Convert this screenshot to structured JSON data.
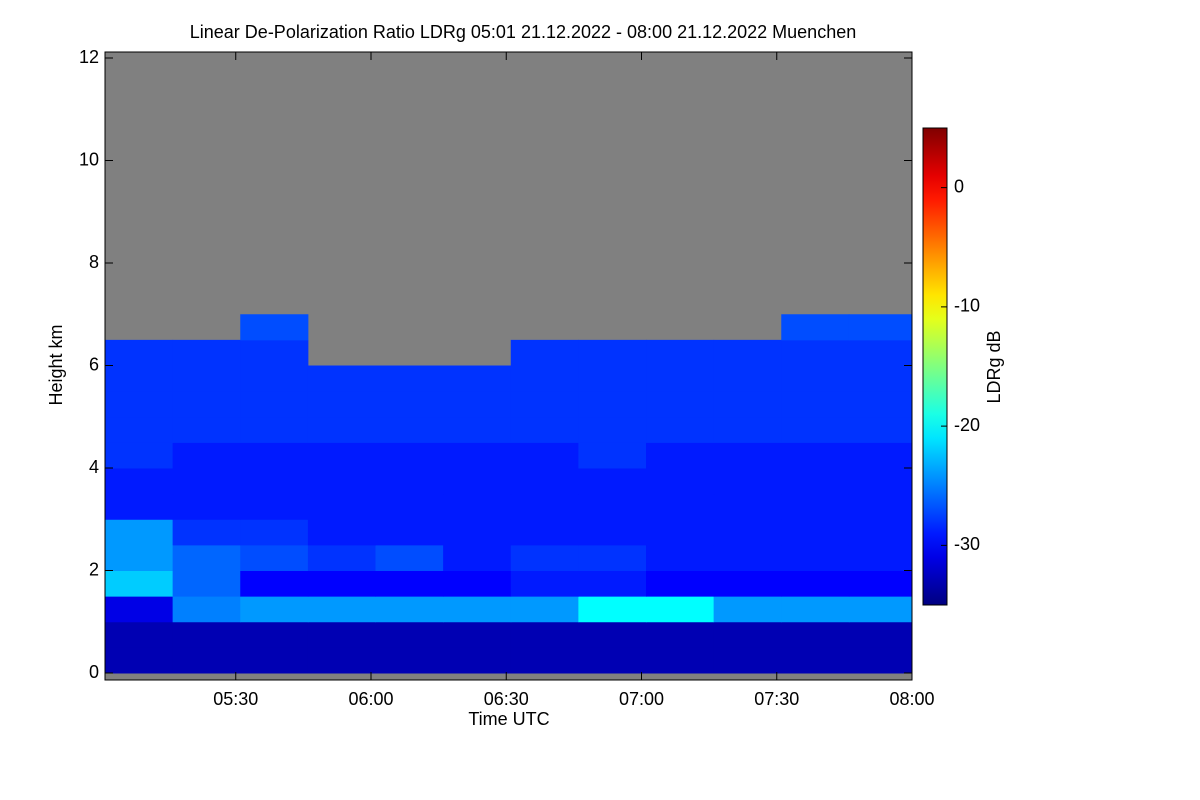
{
  "chart_data": {
    "type": "heatmap",
    "title": "Linear De-Polarization Ratio LDRg   05:01 21.12.2022 - 08:00 21.12.2022 Muenchen",
    "xlabel": "Time UTC",
    "ylabel": "Height km",
    "colorbar_label": "LDRg dB",
    "colormap": "jet",
    "missing_color": "#808080",
    "xlim": [
      301,
      480
    ],
    "xticks": [
      {
        "value": 330,
        "label": "05:30"
      },
      {
        "value": 360,
        "label": "06:00"
      },
      {
        "value": 390,
        "label": "06:30"
      },
      {
        "value": 420,
        "label": "07:00"
      },
      {
        "value": 450,
        "label": "07:30"
      },
      {
        "value": 480,
        "label": "08:00"
      }
    ],
    "ylim": [
      0,
      12
    ],
    "yticks": [
      0,
      2,
      4,
      6,
      8,
      10,
      12
    ],
    "zlim": [
      -35,
      5
    ],
    "zticks": [
      -30,
      -20,
      -10,
      0
    ],
    "xbins": [
      301,
      316,
      331,
      346,
      361,
      376,
      391,
      406,
      421,
      436,
      451,
      466,
      480
    ],
    "ybins": [
      0,
      0.5,
      1,
      1.5,
      2,
      2.5,
      3,
      3.5,
      4,
      4.5,
      5,
      5.5,
      6,
      6.5,
      7,
      7.5,
      8,
      8.5,
      9,
      9.5,
      10,
      10.5,
      11,
      11.5,
      12
    ],
    "values": [
      [
        -33,
        -33,
        -33,
        -33,
        -33,
        -33,
        -33,
        -33,
        -33,
        -33,
        -33,
        -33
      ],
      [
        -33,
        -33,
        -33,
        -33,
        -33,
        -33,
        -33,
        -33,
        -33,
        -33,
        -33,
        -33
      ],
      [
        -31,
        -25,
        -24,
        -24,
        -24,
        -24,
        -24,
        -20,
        -20,
        -24,
        -24,
        -24
      ],
      [
        -22,
        -26,
        -30,
        -30,
        -30,
        -30,
        -29,
        -29,
        -30,
        -30,
        -30,
        -30
      ],
      [
        -24,
        -26,
        -27,
        -28,
        -27,
        -29,
        -28,
        -28,
        -29,
        -29,
        -29,
        -29
      ],
      [
        -24,
        -28,
        -28,
        -29,
        -29,
        -29,
        -29,
        -29,
        -29,
        -29,
        -29,
        -29
      ],
      [
        -29,
        -29,
        -29,
        -29,
        -29,
        -29,
        -29,
        -29,
        -29,
        -29,
        -29,
        -29
      ],
      [
        -29,
        -29,
        -29,
        -29,
        -29,
        -29,
        -29,
        -29,
        -29,
        -29,
        -29,
        -29
      ],
      [
        -28,
        -29,
        -29,
        -29,
        -29,
        -29,
        -29,
        -28,
        -29,
        -29,
        -29,
        -29
      ],
      [
        -28,
        -28,
        -28,
        -28,
        -28,
        -28,
        -28,
        -28,
        -28,
        -28,
        -28,
        -28
      ],
      [
        -28,
        -28,
        -28,
        -28,
        -28,
        -28,
        -28,
        -28,
        -28,
        -28,
        -28,
        -28
      ],
      [
        -28,
        -28,
        -28,
        -28,
        -28,
        -28,
        -28,
        -28,
        -28,
        -28,
        -28,
        -28
      ],
      [
        -28,
        -28,
        -28,
        null,
        null,
        null,
        -28,
        -28,
        -28,
        -28,
        -28,
        -28
      ],
      [
        null,
        null,
        -27,
        null,
        null,
        null,
        null,
        null,
        null,
        null,
        -27,
        -27
      ],
      [
        null,
        null,
        null,
        null,
        null,
        null,
        null,
        null,
        null,
        null,
        null,
        null
      ],
      [
        null,
        null,
        null,
        null,
        null,
        null,
        null,
        null,
        null,
        null,
        null,
        null
      ],
      [
        null,
        null,
        null,
        null,
        null,
        null,
        null,
        null,
        null,
        null,
        null,
        null
      ],
      [
        null,
        null,
        null,
        null,
        null,
        null,
        null,
        null,
        null,
        null,
        null,
        null
      ],
      [
        null,
        null,
        null,
        null,
        null,
        null,
        null,
        null,
        null,
        null,
        null,
        null
      ],
      [
        null,
        null,
        null,
        null,
        null,
        null,
        null,
        null,
        null,
        null,
        null,
        null
      ],
      [
        null,
        null,
        null,
        null,
        null,
        null,
        null,
        null,
        null,
        null,
        null,
        null
      ],
      [
        null,
        null,
        null,
        null,
        null,
        null,
        null,
        null,
        null,
        null,
        null,
        null
      ],
      [
        null,
        null,
        null,
        null,
        null,
        null,
        null,
        null,
        null,
        null,
        null,
        null
      ],
      [
        null,
        null,
        null,
        null,
        null,
        null,
        null,
        null,
        null,
        null,
        null,
        null
      ]
    ]
  }
}
